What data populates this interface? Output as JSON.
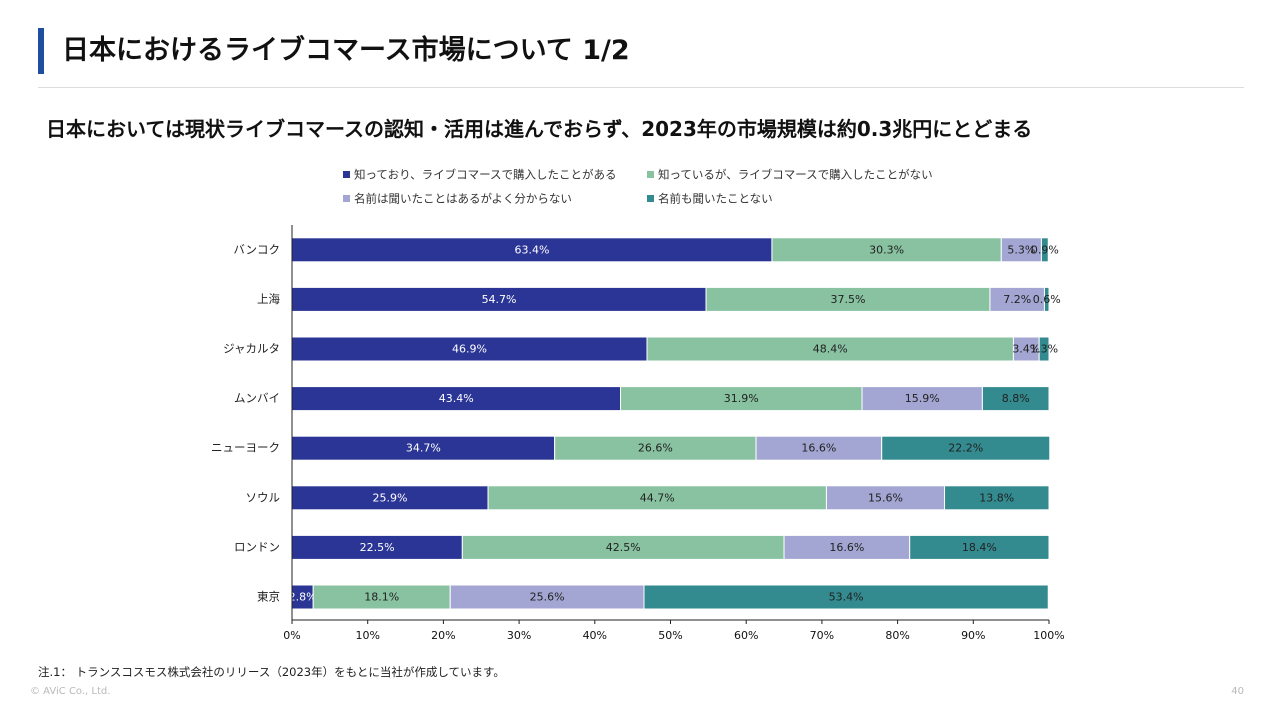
{
  "header": {
    "title": "日本におけるライブコマース市場について 1/2",
    "subtitle": "日本においては現状ライブコマースの認知・活用は進んでおらず、2023年の市場規模は約0.3兆円にとどまる"
  },
  "chart_data": {
    "type": "bar",
    "orientation": "horizontal",
    "stacked": true,
    "categories": [
      "バンコク",
      "上海",
      "ジャカルタ",
      "ムンバイ",
      "ニューヨーク",
      "ソウル",
      "ロンドン",
      "東京"
    ],
    "series": [
      {
        "name": "知っており、ライブコマースで購入したことがある",
        "color": "#2b3595",
        "label_color": "#ffffff",
        "values": [
          63.4,
          54.7,
          46.9,
          43.4,
          34.7,
          25.9,
          22.5,
          2.8
        ]
      },
      {
        "name": "知っているが、ライブコマースで購入したことがない",
        "color": "#88c2a1",
        "label_color": "#222222",
        "values": [
          30.3,
          37.5,
          48.4,
          31.9,
          26.6,
          44.7,
          42.5,
          18.1
        ]
      },
      {
        "name": "名前は聞いたことはあるがよく分からない",
        "color": "#a3a6d2",
        "label_color": "#222222",
        "values": [
          5.3,
          7.2,
          3.4,
          15.9,
          16.6,
          15.6,
          16.6,
          25.6
        ]
      },
      {
        "name": "名前も聞いたことない",
        "color": "#338a8f",
        "label_color": "#222222",
        "values": [
          0.9,
          0.6,
          1.3,
          8.8,
          22.2,
          13.8,
          18.4,
          53.4
        ]
      }
    ],
    "data_labels": [
      [
        "63.4%",
        "30.3%",
        "5.3%",
        "0.9%"
      ],
      [
        "54.7%",
        "37.5%",
        "7.2%",
        "0.6%"
      ],
      [
        "46.9%",
        "48.4%",
        "3.4%",
        "1.3%"
      ],
      [
        "43.4%",
        "31.9%",
        "15.9%",
        "8.8%"
      ],
      [
        "34.7%",
        "26.6%",
        "16.6%",
        "22.2%"
      ],
      [
        "25.9%",
        "44.7%",
        "15.6%",
        "13.8%"
      ],
      [
        "22.5%",
        "42.5%",
        "16.6%",
        "18.4%"
      ],
      [
        "2.8%",
        "18.1%",
        "25.6%",
        "53.4%"
      ]
    ],
    "xlim": [
      0,
      100
    ],
    "x_ticks": [
      "0%",
      "10%",
      "20%",
      "30%",
      "40%",
      "50%",
      "60%",
      "70%",
      "80%",
      "90%",
      "100%"
    ],
    "legend_position": "top",
    "grid": false
  },
  "footer": {
    "note": "注.1： トランスコスモス株式会社のリリース（2023年）をもとに当社が作成しています。",
    "copyright": "© AViC Co., Ltd.",
    "page_number": "40"
  }
}
